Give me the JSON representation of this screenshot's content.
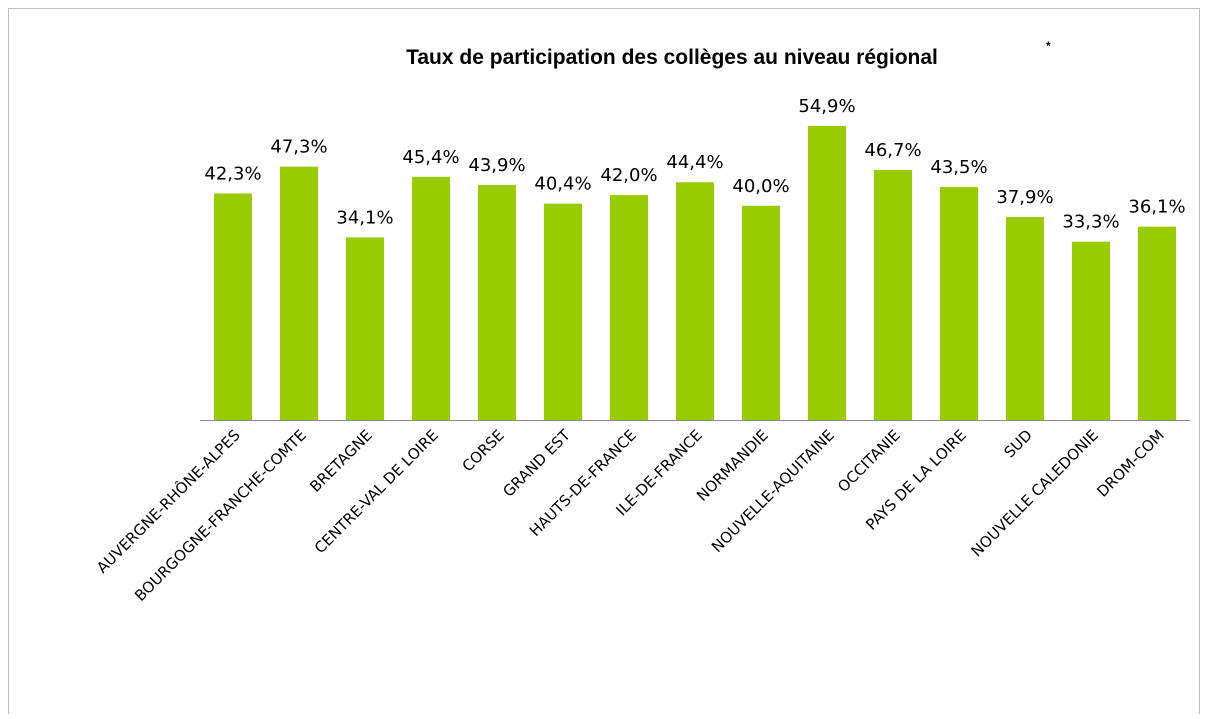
{
  "chart_data": {
    "type": "bar",
    "title": "Taux de participation des collèges au niveau régional",
    "title_note": "*",
    "categories": [
      "AUVERGNE-RHÔNE-ALPES",
      "BOURGOGNE-FRANCHE-COMTE",
      "BRETAGNE",
      "CENTRE-VAL DE LOIRE",
      "CORSE",
      "GRAND EST",
      "HAUTS-DE-FRANCE",
      "ILE-DE-FRANCE",
      "NORMANDIE",
      "NOUVELLE-AQUITAINE",
      "OCCITANIE",
      "PAYS DE LA LOIRE",
      "SUD",
      "NOUVELLE CALEDONIE",
      "DROM-COM"
    ],
    "values": [
      42.3,
      47.3,
      34.1,
      45.4,
      43.9,
      40.4,
      42.0,
      44.4,
      40.0,
      54.9,
      46.7,
      43.5,
      37.9,
      33.3,
      36.1
    ],
    "value_labels": [
      "42,3%",
      "47,3%",
      "34,1%",
      "45,4%",
      "43,9%",
      "40,4%",
      "42,0%",
      "44,4%",
      "40,0%",
      "54,9%",
      "46,7%",
      "43,5%",
      "37,9%",
      "33,3%",
      "36,1%"
    ],
    "color": "#99cc00"
  }
}
